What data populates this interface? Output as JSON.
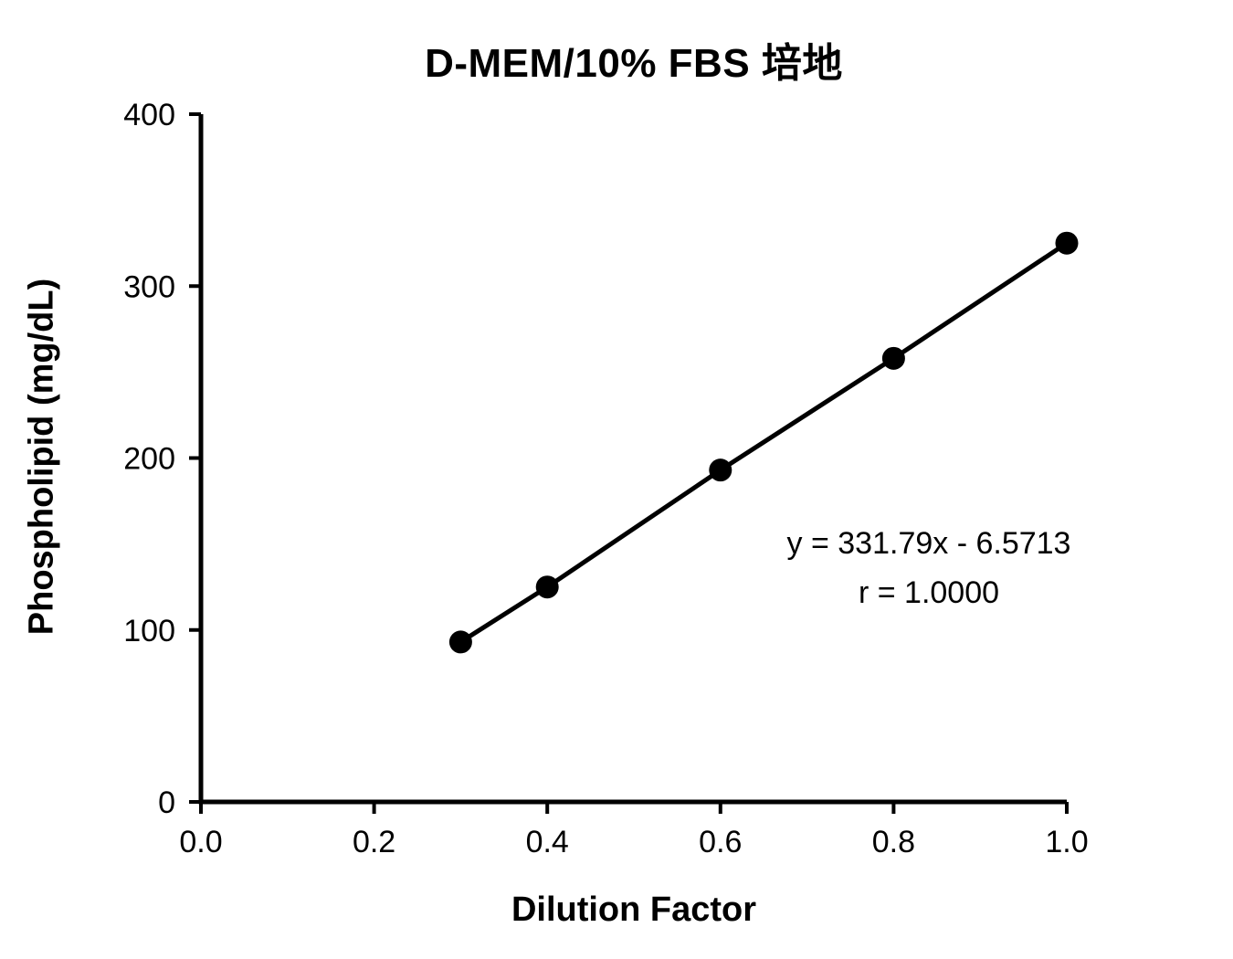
{
  "chart_data": {
    "type": "scatter",
    "title": "D-MEM/10% FBS 培地",
    "xlabel": "Dilution Factor",
    "ylabel": "Phospholipid (mg/dL)",
    "x": [
      0.3,
      0.4,
      0.6,
      0.8,
      1.0
    ],
    "y": [
      93,
      125,
      193,
      258,
      325
    ],
    "xlim": [
      0.0,
      1.0
    ],
    "ylim": [
      0,
      400
    ],
    "x_tick_values": [
      0.0,
      0.2,
      0.4,
      0.6,
      0.8,
      1.0
    ],
    "x_tick_labels": [
      "0.0",
      "0.2",
      "0.4",
      "0.6",
      "0.8",
      "1.0"
    ],
    "y_tick_values": [
      0,
      100,
      200,
      300,
      400
    ],
    "y_tick_labels": [
      "0",
      "100",
      "200",
      "300",
      "400"
    ],
    "grid": false,
    "legend": "none",
    "line_color": "#000000",
    "marker_color": "#000000",
    "marker_shape": "filled-circle",
    "annotations": {
      "equation": "y = 331.79x - 6.5713",
      "correlation": "r = 1.0000"
    }
  }
}
